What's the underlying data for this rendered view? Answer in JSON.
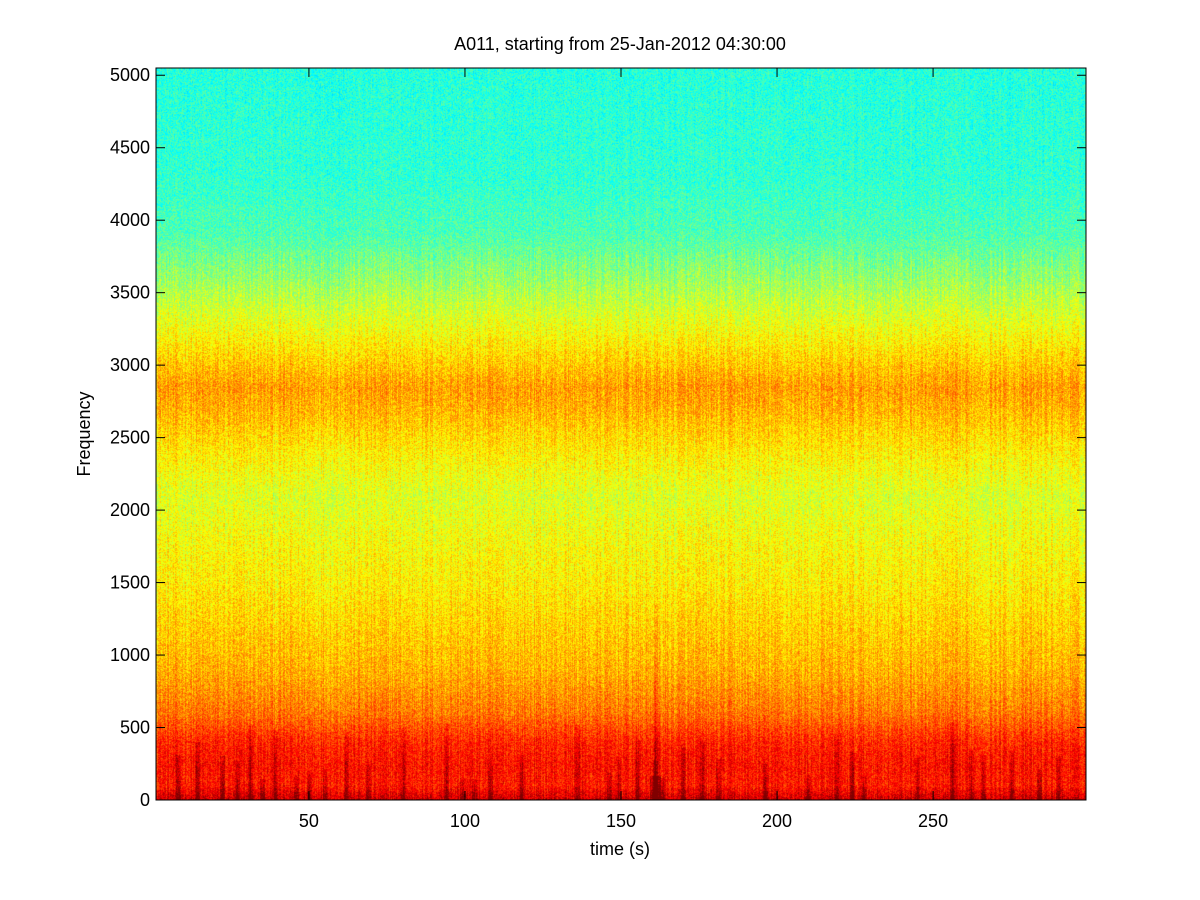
{
  "chart_data": {
    "type": "heatmap",
    "title": "A011, starting from 25-Jan-2012 04:30:00",
    "xlabel": "time (s)",
    "ylabel": "Frequency",
    "xlim": [
      1,
      299
    ],
    "ylim": [
      0,
      5050
    ],
    "xticks": [
      50,
      100,
      150,
      200,
      250
    ],
    "yticks": [
      0,
      500,
      1000,
      1500,
      2000,
      2500,
      3000,
      3500,
      4000,
      4500,
      5000
    ],
    "colormap": "jet",
    "intensity_profile": {
      "frequency": [
        0,
        100,
        250,
        400,
        600,
        900,
        1200,
        1500,
        1800,
        2100,
        2400,
        2700,
        2850,
        3000,
        3300,
        3600,
        3900,
        4300,
        5050
      ],
      "level": [
        0.93,
        0.85,
        0.86,
        0.84,
        0.76,
        0.7,
        0.67,
        0.64,
        0.62,
        0.59,
        0.64,
        0.7,
        0.72,
        0.68,
        0.6,
        0.52,
        0.45,
        0.42,
        0.41
      ]
    },
    "transient_events_s": [
      8,
      14,
      22,
      27,
      31,
      35,
      39,
      46,
      50,
      55,
      62,
      69,
      80,
      94,
      99,
      103,
      108,
      118,
      136,
      146,
      149,
      155,
      161,
      163,
      170,
      176,
      181,
      196,
      210,
      219,
      224,
      228,
      245,
      256,
      262,
      266,
      275,
      284,
      290
    ],
    "major_event": {
      "time_s": 161,
      "max_frequency": 1350
    },
    "colors": {
      "axis": "#000000",
      "background": "#ffffff"
    }
  }
}
